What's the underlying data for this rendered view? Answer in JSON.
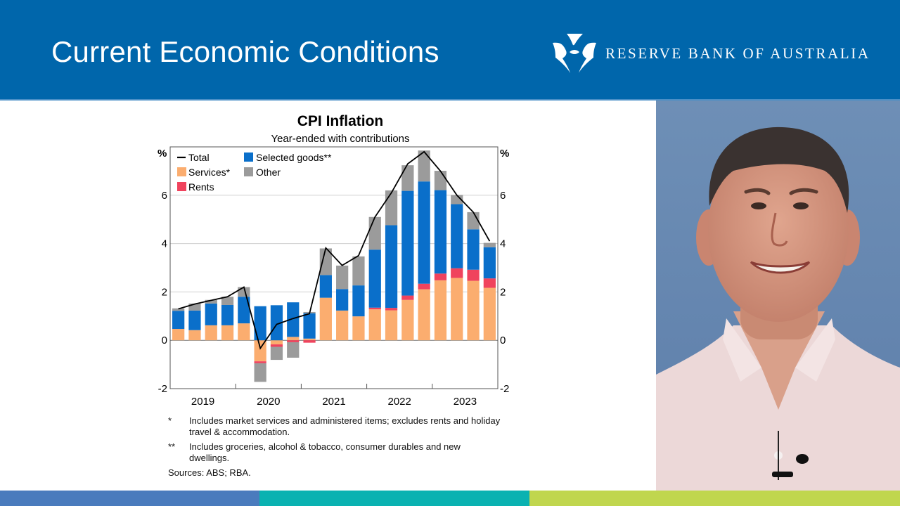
{
  "header": {
    "title": "Current Economic Conditions",
    "logo_text": "RESERVE BANK OF AUSTRALIA",
    "logo_icon": "rba-emblem-icon",
    "background_color": "#0066ab"
  },
  "chart_data": {
    "type": "bar",
    "stacked": true,
    "title": "CPI Inflation",
    "subtitle": "Year-ended with contributions",
    "ylabel_left": "%",
    "ylabel_right": "%",
    "ylim": [
      -2,
      8
    ],
    "yticks": [
      "-2",
      "0",
      "2",
      "4",
      "6"
    ],
    "ytick_values": [
      -2,
      0,
      2,
      4,
      6
    ],
    "grid": true,
    "x_year_labels": [
      "2019",
      "2020",
      "2021",
      "2022",
      "2023"
    ],
    "categories": [
      "2019 Q1",
      "2019 Q2",
      "2019 Q3",
      "2019 Q4",
      "2020 Q1",
      "2020 Q2",
      "2020 Q3",
      "2020 Q4",
      "2021 Q1",
      "2021 Q2",
      "2021 Q3",
      "2021 Q4",
      "2022 Q1",
      "2022 Q2",
      "2022 Q3",
      "2022 Q4",
      "2023 Q1",
      "2023 Q2",
      "2023 Q3",
      "2023 Q4"
    ],
    "legend_position": "top-left",
    "series": [
      {
        "name": "Services*",
        "color": "#fbad6f",
        "values": [
          0.47,
          0.42,
          0.62,
          0.62,
          0.7,
          -0.87,
          -0.17,
          0.14,
          0.07,
          1.76,
          1.23,
          0.99,
          1.28,
          1.24,
          1.67,
          2.11,
          2.48,
          2.58,
          2.46,
          2.17
        ]
      },
      {
        "name": "Rents",
        "color": "#f0435d",
        "values": [
          0.0,
          0.0,
          0.0,
          0.0,
          0.0,
          -0.08,
          -0.1,
          -0.08,
          -0.1,
          0.0,
          0.0,
          0.0,
          0.07,
          0.1,
          0.18,
          0.23,
          0.28,
          0.4,
          0.46,
          0.39
        ]
      },
      {
        "name": "Selected goods**",
        "color": "#0a6fca",
        "values": [
          0.75,
          0.81,
          0.9,
          0.84,
          1.1,
          1.41,
          1.45,
          1.43,
          1.05,
          0.94,
          0.89,
          1.28,
          2.4,
          3.42,
          4.33,
          4.23,
          3.45,
          2.65,
          1.67,
          1.29
        ]
      },
      {
        "name": "Other",
        "color": "#9b9b9b",
        "values": [
          0.1,
          0.29,
          0.15,
          0.34,
          0.4,
          -0.77,
          -0.54,
          -0.64,
          0.05,
          1.1,
          0.97,
          1.2,
          1.35,
          1.44,
          1.06,
          1.28,
          0.8,
          0.38,
          0.71,
          0.18
        ]
      }
    ],
    "line": {
      "name": "Total",
      "color": "#000000",
      "values": [
        1.3,
        1.5,
        1.65,
        1.8,
        2.2,
        -0.33,
        0.66,
        0.9,
        1.1,
        3.82,
        3.1,
        3.5,
        5.1,
        6.1,
        7.3,
        7.8,
        7.0,
        6.0,
        5.3,
        4.1
      ]
    },
    "legend": [
      "Total",
      "Selected goods**",
      "Services*",
      "Other",
      "Rents"
    ],
    "footnotes": [
      {
        "mark": "*",
        "text": "Includes market services and administered items; excludes rents and holiday travel & accommodation."
      },
      {
        "mark": "**",
        "text": "Includes groceries, alcohol & tobacco, consumer durables and new dwellings."
      }
    ],
    "sources": "Sources: ABS; RBA."
  },
  "photo": {
    "subject": "presenter-photo",
    "background_color": "#6d8fb8"
  },
  "footer_colors": [
    "#4a7bbd",
    "#0ab2b1",
    "#c0d64e"
  ]
}
